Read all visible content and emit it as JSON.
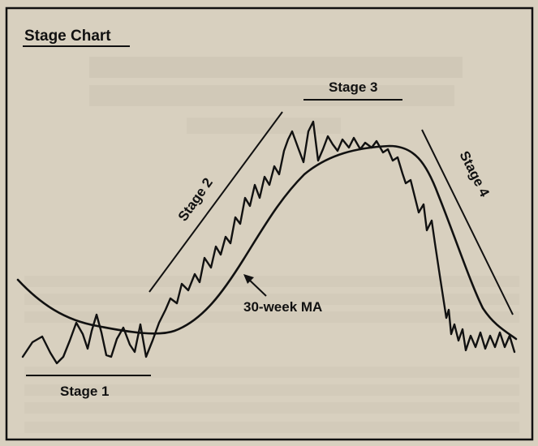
{
  "diagram": {
    "title": "Stage Chart",
    "stages": [
      {
        "key": "stage1",
        "label": "Stage 1"
      },
      {
        "key": "stage2",
        "label": "Stage 2"
      },
      {
        "key": "stage3",
        "label": "Stage 3"
      },
      {
        "key": "stage4",
        "label": "Stage 4"
      }
    ],
    "ma_label": "30-week MA",
    "colors": {
      "paper": "#d8d0bf",
      "ink": "#111111",
      "bleed_text": "#b9b1a1"
    }
  }
}
